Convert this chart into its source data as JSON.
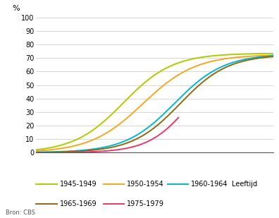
{
  "series": [
    {
      "label": "1945-1949",
      "color": "#aacc00",
      "max_val": 73.5,
      "midpoint": 26.0,
      "steepness": 0.32,
      "x_end": 45
    },
    {
      "label": "1950-1954",
      "color": "#f5a623",
      "max_val": 72.5,
      "midpoint": 28.5,
      "steepness": 0.3,
      "x_end": 45
    },
    {
      "label": "1960-1964",
      "color": "#00b8c8",
      "max_val": 73.0,
      "midpoint": 32.5,
      "steepness": 0.32,
      "x_end": 45
    },
    {
      "label": "1965-1969",
      "color": "#8b6914",
      "max_val": 72.5,
      "midpoint": 33.2,
      "steepness": 0.33,
      "x_end": 45
    },
    {
      "label": "1975-1979",
      "color": "#e8396a",
      "max_val": 72.0,
      "midpoint": 34.5,
      "steepness": 0.38,
      "x_end": 33.0
    }
  ],
  "x_min": 15,
  "x_max": 45,
  "y_min": 0,
  "y_max": 100,
  "y_ticks": [
    0,
    10,
    20,
    30,
    40,
    50,
    60,
    70,
    80,
    90,
    100
  ],
  "ylabel": "%",
  "legend_label_right": "Leeftijd",
  "source_text": "Bron: CBS",
  "background_color": "#ffffff",
  "grid_color": "#c8c8c8",
  "line_width": 1.4
}
